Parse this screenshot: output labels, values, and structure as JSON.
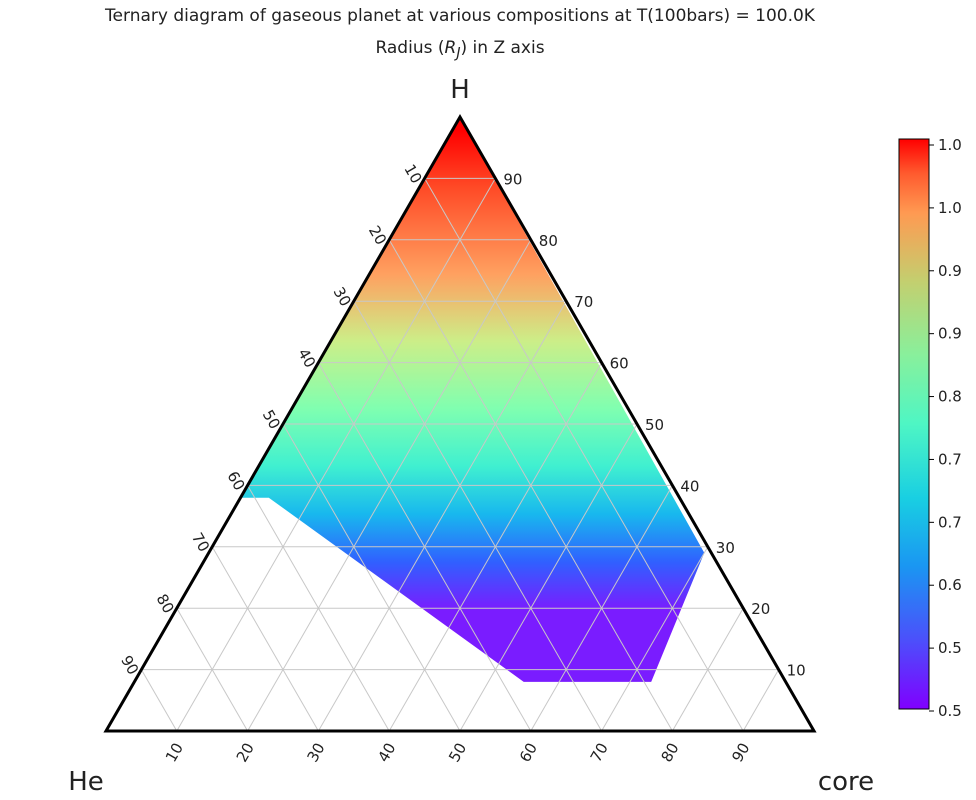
{
  "chart_data": {
    "type": "ternary",
    "title": "Ternary diagram of gaseous planet at various compositions at T(100bars) = 100.0K",
    "subtitle_prefix": "Radius (",
    "subtitle_var": "R",
    "subtitle_sub": "J",
    "subtitle_suffix": ") in Z axis",
    "corner_labels": {
      "top": "H",
      "left": "He",
      "right": "core"
    },
    "axis_ticks": [
      "10",
      "20",
      "30",
      "40",
      "50",
      "60",
      "70",
      "80",
      "90"
    ],
    "grid": true,
    "colormap": "rainbow",
    "colorbar": {
      "placement": "right",
      "range": [
        0.5,
        1.0
      ],
      "tick_labels": [
        "1.0",
        "1.0",
        "0.9",
        "0.9",
        "0.8",
        "0.7",
        "0.7",
        "0.6",
        "0.5",
        "0.5"
      ]
    },
    "region": {
      "description_points_H_core": [
        [
          100,
          0
        ],
        [
          38,
          0
        ],
        [
          38,
          4
        ],
        [
          8,
          55
        ],
        [
          8,
          73
        ],
        [
          29,
          70
        ],
        [
          100,
          0
        ]
      ],
      "value_range": [
        0.5,
        1.0
      ]
    },
    "colors": {
      "frame": "#000000",
      "grid": "#c8c8c8",
      "colorbar_border": "#000000"
    }
  }
}
